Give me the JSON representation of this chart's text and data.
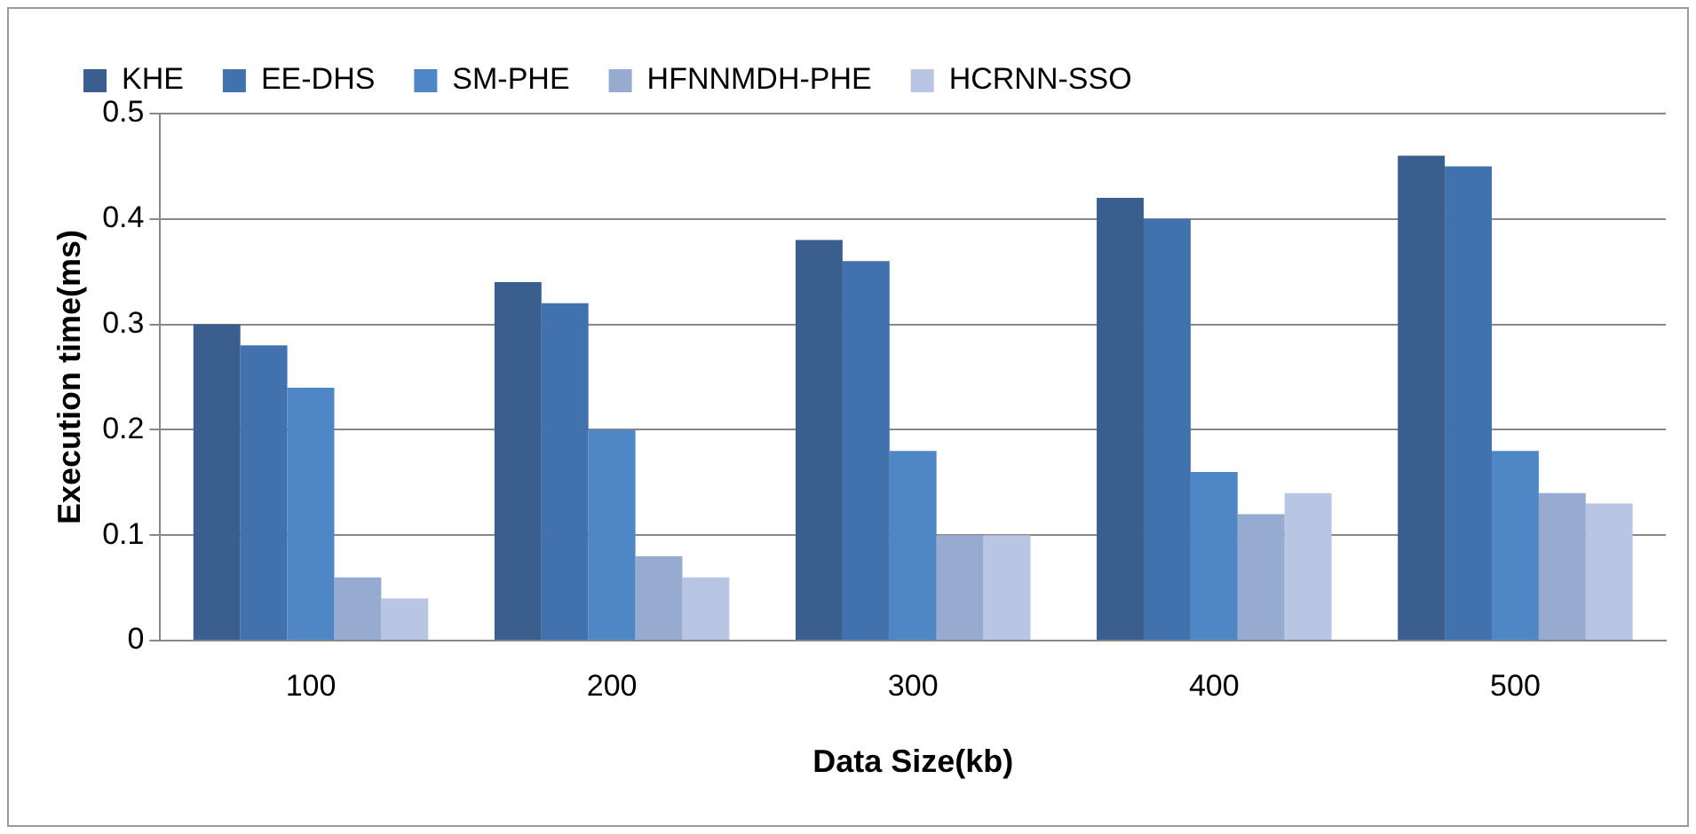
{
  "chart_data": {
    "type": "bar",
    "xlabel": "Data Size(kb)",
    "ylabel": "Execution time(ms)",
    "categories": [
      "100",
      "200",
      "300",
      "400",
      "500"
    ],
    "series": [
      {
        "name": "KHE",
        "color": "#3a5f8f",
        "values": [
          0.3,
          0.34,
          0.38,
          0.42,
          0.46
        ]
      },
      {
        "name": "EE-DHS",
        "color": "#4272ad",
        "values": [
          0.28,
          0.32,
          0.36,
          0.4,
          0.45
        ]
      },
      {
        "name": "SM-PHE",
        "color": "#4e86c6",
        "values": [
          0.24,
          0.2,
          0.18,
          0.16,
          0.18
        ]
      },
      {
        "name": "HFNNMDH-PHE",
        "color": "#97abd0",
        "values": [
          0.06,
          0.08,
          0.1,
          0.12,
          0.14
        ]
      },
      {
        "name": "HCRNN-SSO",
        "color": "#b8c6e3",
        "values": [
          0.04,
          0.06,
          0.1,
          0.14,
          0.13
        ]
      }
    ],
    "ylim": [
      0,
      0.5
    ],
    "yticks": [
      0,
      0.1,
      0.2,
      0.3,
      0.4,
      0.5
    ],
    "grid": "y",
    "legend": "top"
  }
}
